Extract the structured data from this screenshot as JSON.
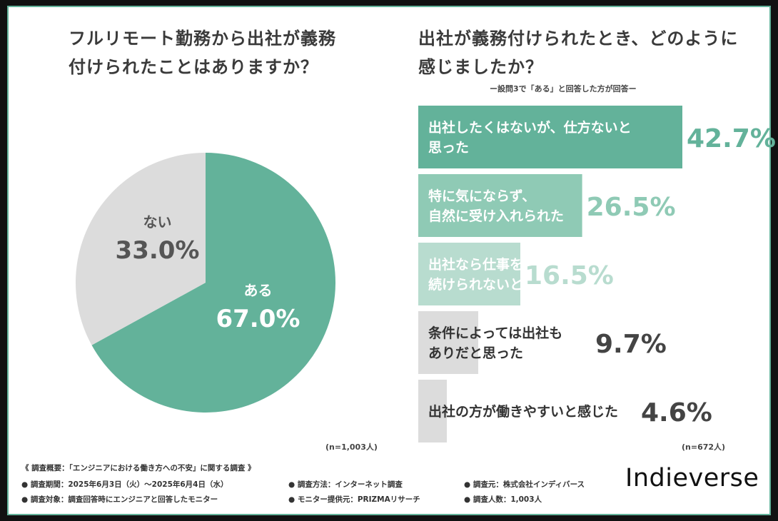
{
  "questions": {
    "q1": "フルリモート勤務から出社が義務\n付けられたことはありますか？",
    "q2": "出社が義務付けられたとき、どのように\n感じましたか？"
  },
  "sub_note": "ー設問3で「ある」と回答した方が回答ー",
  "n_left": "(n=1,003人)",
  "n_right": "(n=672人)",
  "footer": {
    "overview": "《 調査概要：「エンジニアにおける働き方への不安」に関する調査 》",
    "period": "● 調査期間：2025年6月3日（火）〜2025年6月4日（水）",
    "method": "● 調査方法：インターネット調査",
    "org": "● 調査元：株式会社インディバース",
    "target": "● 調査対象：調査回答時にエンジニアと回答したモニター",
    "provider": "● モニター提供元：PRIZMAリサーチ",
    "count": "● 調査人数：1,003人"
  },
  "logo": "Indieverse",
  "colors": {
    "green_dark": "#63b29a",
    "green_mid": "#8fcab5",
    "green_light": "#b8dccf",
    "gray": "#dcdcdc",
    "text_gray": "#555555",
    "bg": "#ffffff"
  },
  "chart_data": [
    {
      "type": "pie",
      "slices": [
        {
          "label": "ある",
          "value": 67.0,
          "value_label": "67.0%",
          "color": "#63b29a"
        },
        {
          "label": "ない",
          "value": 33.0,
          "value_label": "33.0%",
          "color": "#dcdcdc"
        }
      ]
    },
    {
      "type": "bar",
      "orientation": "horizontal",
      "categories": [
        "出社したくはないが、仕方ないと\n思った",
        "特に気にならず、\n自然に受け入れられた",
        "出社なら仕事を\n続けられないと思った",
        "条件によっては出社も\nありだと思った",
        "出社の方が働きやすいと感じた"
      ],
      "values": [
        42.7,
        26.5,
        16.5,
        9.7,
        4.6
      ],
      "value_labels": [
        "42.7%",
        "26.5%",
        "16.5%",
        "9.7%",
        "4.6%"
      ],
      "colors": [
        "#63b29a",
        "#8fcab5",
        "#b8dccf",
        "#dcdcdc",
        "#dcdcdc"
      ]
    }
  ]
}
